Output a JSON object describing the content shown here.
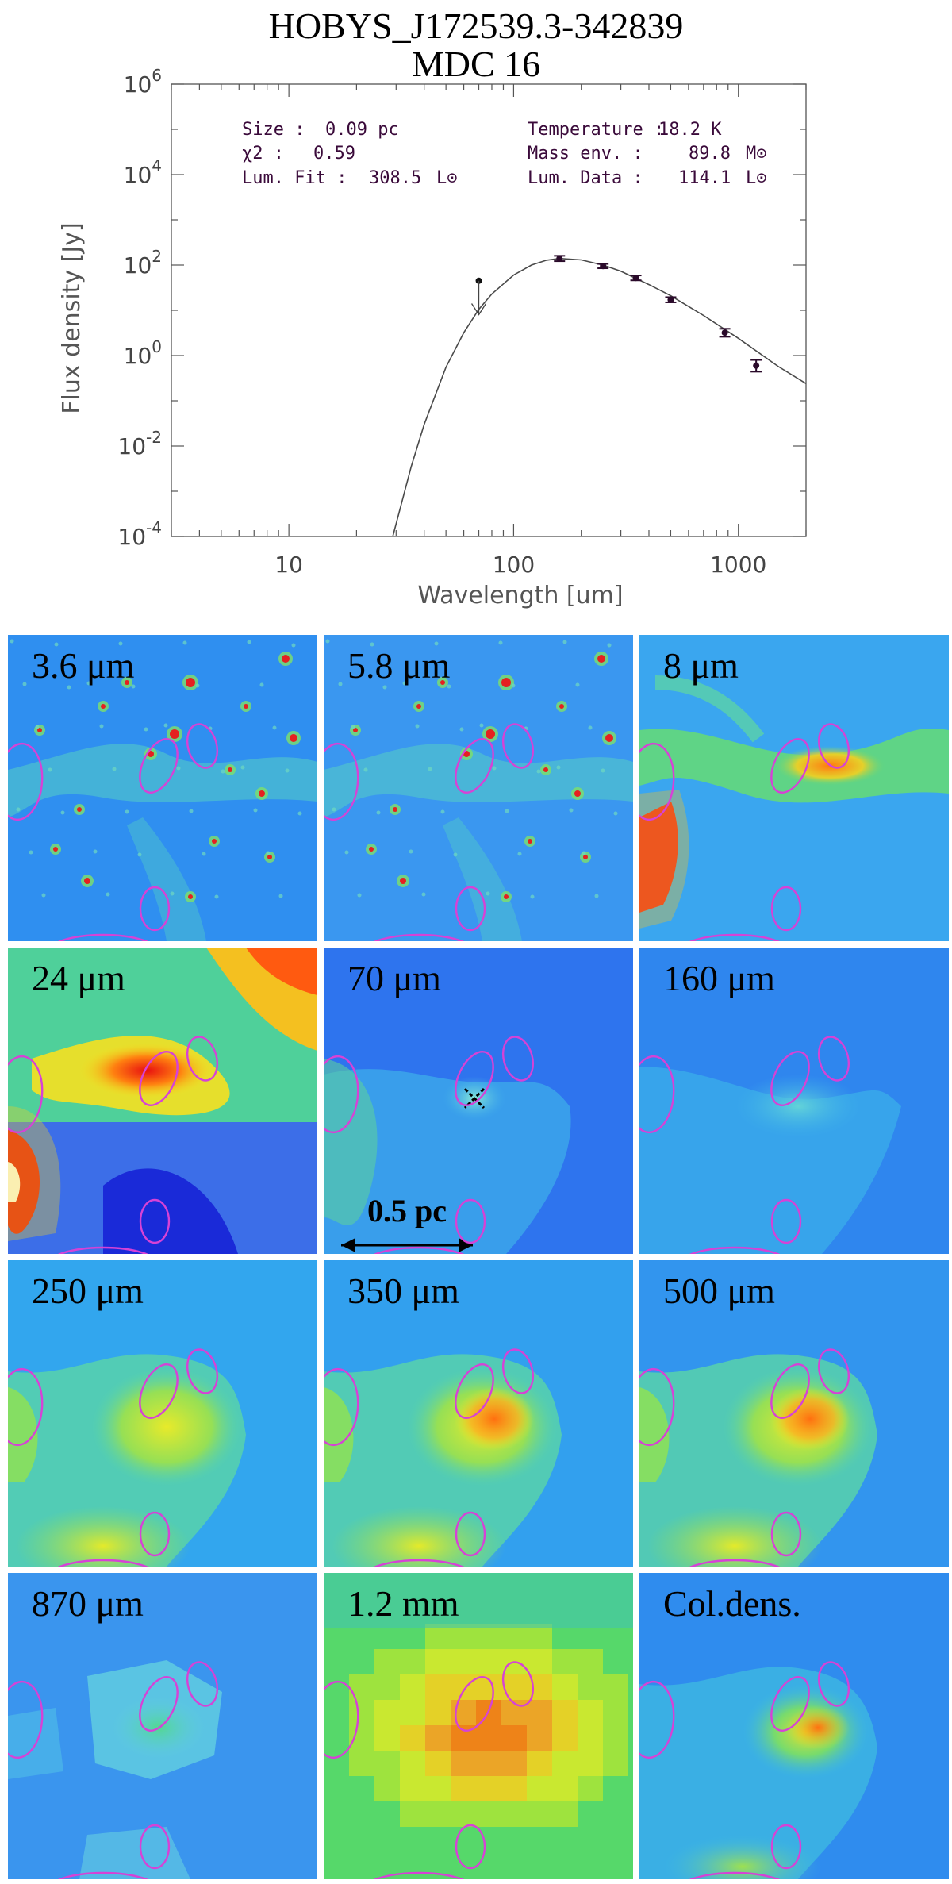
{
  "title_line1": "HOBYS_J172539.3-342839",
  "title_line2": "MDC 16",
  "chart_data": {
    "type": "scatter",
    "xscale": "log",
    "yscale": "log",
    "xlabel": "Wavelength [um]",
    "ylabel": "Flux density [Jy]",
    "xlim": [
      3,
      2000
    ],
    "ylim": [
      0.0001,
      1000000
    ],
    "x_ticklabels": [
      "10",
      "100",
      "1000"
    ],
    "y_ticklabels": [
      "10^-4",
      "10^-2",
      "10^0",
      "10^2",
      "10^4",
      "10^6"
    ],
    "points": [
      {
        "x": 160,
        "y": 140,
        "err_lo": 122,
        "err_hi": 160
      },
      {
        "x": 250,
        "y": 95,
        "err_lo": 85,
        "err_hi": 106
      },
      {
        "x": 350,
        "y": 52,
        "err_lo": 46,
        "err_hi": 59
      },
      {
        "x": 500,
        "y": 17,
        "err_lo": 15,
        "err_hi": 19.5
      },
      {
        "x": 870,
        "y": 3.2,
        "err_lo": 2.6,
        "err_hi": 3.9
      },
      {
        "x": 1200,
        "y": 0.6,
        "err_lo": 0.44,
        "err_hi": 0.8
      }
    ],
    "upper_limits": [
      {
        "x": 70,
        "y": 45,
        "arrow_to": 8
      }
    ],
    "model_curve": {
      "x": [
        29,
        35,
        40,
        50,
        60,
        70,
        80,
        100,
        120,
        140,
        160,
        200,
        250,
        300,
        400,
        500,
        700,
        1000,
        1500,
        2000
      ],
      "y": [
        0.0001,
        0.0035,
        0.03,
        0.55,
        3.2,
        10.5,
        23,
        60,
        100,
        128,
        140,
        130,
        100,
        73,
        37,
        21,
        7.7,
        2.4,
        0.58,
        0.24
      ]
    },
    "annotations": {
      "size_label": "Size :",
      "size_value": "0.09 pc",
      "chi2_label": "χ2 :",
      "chi2_value": "0.59",
      "lumfit_label": "Lum. Fit :",
      "lumfit_value": "308.5",
      "temp_label": "Temperature :",
      "temp_value": "18.2 K",
      "mass_label": "Mass env.  :",
      "mass_value": "89.8",
      "lumdata_label": "Lum. Data :",
      "lumdata_value": "114.1",
      "unit_lsun": "L⊙",
      "unit_msun": "M⊙"
    }
  },
  "panels": [
    {
      "label": "3.6 μm",
      "bg": "#2f8ff0",
      "style": "stars"
    },
    {
      "label": "5.8 μm",
      "bg": "#3a97f0",
      "style": "stars"
    },
    {
      "label": "8 μm",
      "bg": "#3aa6ef",
      "style": "filament8"
    },
    {
      "label": "24 μm",
      "bg": "#4fd09a",
      "style": "hot24"
    },
    {
      "label": "70 μm",
      "bg": "#2e74ee",
      "style": "f70"
    },
    {
      "label": "160 μm",
      "bg": "#2f86ee",
      "style": "f160"
    },
    {
      "label": "250 μm",
      "bg": "#32a6ee",
      "style": "sub"
    },
    {
      "label": "350 μm",
      "bg": "#32a0ee",
      "style": "sub"
    },
    {
      "label": "500 μm",
      "bg": "#3295ee",
      "style": "sub"
    },
    {
      "label": "870 μm",
      "bg": "#3a95ee",
      "style": "laboca"
    },
    {
      "label": "1.2 mm",
      "bg": "#56d86a",
      "style": "mm"
    },
    {
      "label": "Col.dens.",
      "bg": "#2f8cee",
      "style": "coldens"
    }
  ],
  "scalebar_label": "0.5 pc",
  "colors": {
    "ellipse": "#d642d6",
    "curve": "#4a4a4a",
    "point": "#2a0a2a",
    "text": "#3a0a3a"
  }
}
